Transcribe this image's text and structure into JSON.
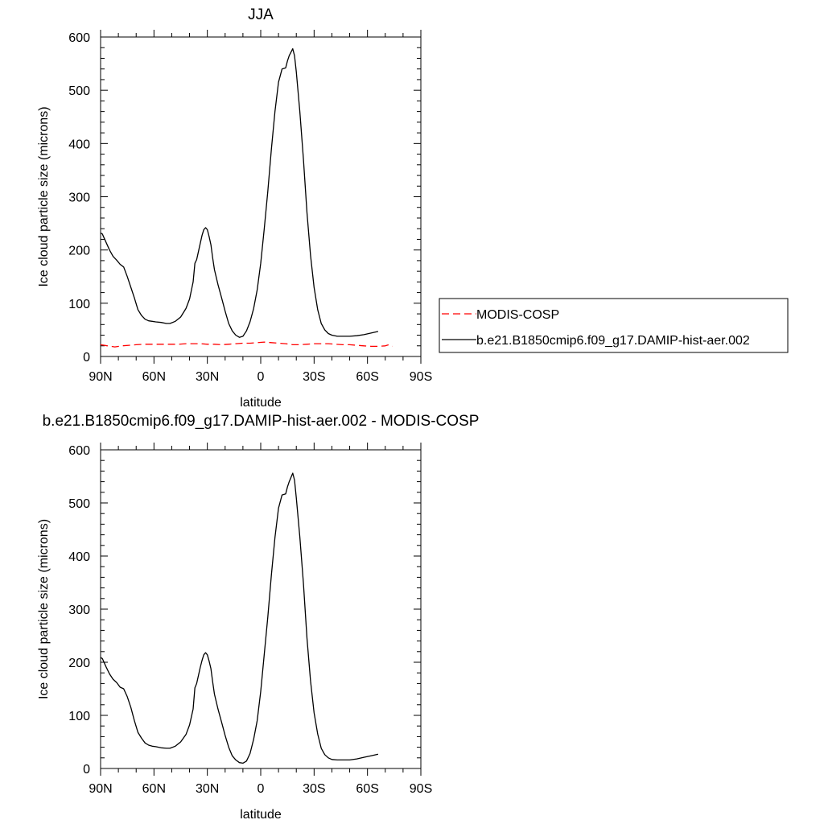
{
  "chart_data": [
    {
      "type": "line",
      "title": "JJA",
      "xlabel": "latitude",
      "ylabel": "Ice cloud particle size (microns)",
      "xlim": [
        90,
        -90
      ],
      "ylim": [
        0,
        600
      ],
      "xticks": [
        {
          "value": 90,
          "label": "90N"
        },
        {
          "value": 60,
          "label": "60N"
        },
        {
          "value": 30,
          "label": "30N"
        },
        {
          "value": 0,
          "label": "0"
        },
        {
          "value": -30,
          "label": "30S"
        },
        {
          "value": -60,
          "label": "60S"
        },
        {
          "value": -90,
          "label": "90S"
        }
      ],
      "yticks": [
        0,
        100,
        200,
        300,
        400,
        500,
        600
      ],
      "legend_position": "right",
      "series": [
        {
          "name": "MODIS-COSP",
          "color": "#ff0000",
          "dash": "dashed",
          "x": [
            90,
            86,
            82,
            78,
            74,
            70,
            66,
            62,
            58,
            54,
            50,
            46,
            42,
            38,
            34,
            30,
            26,
            22,
            18,
            14,
            10,
            6,
            2,
            -2,
            -6,
            -10,
            -14,
            -18,
            -22,
            -26,
            -30,
            -34,
            -38,
            -42,
            -46,
            -50,
            -54,
            -58,
            -62,
            -66,
            -70,
            -72,
            -74
          ],
          "values": [
            22,
            20,
            18,
            20,
            21,
            22,
            23,
            23,
            23,
            23,
            23,
            23,
            24,
            24,
            24,
            23,
            23,
            22,
            23,
            24,
            25,
            25,
            26,
            27,
            26,
            25,
            24,
            22,
            22,
            23,
            24,
            24,
            24,
            23,
            22,
            22,
            21,
            20,
            19,
            19,
            20,
            22,
            19
          ]
        },
        {
          "name": "b.e21.B1850cmip6.f09_g17.DAMIP-hist-aer.002",
          "color": "#000000",
          "dash": "solid",
          "x": [
            90,
            89,
            87,
            85,
            83,
            81,
            79,
            77,
            75,
            73,
            71,
            69,
            67,
            65,
            63,
            61,
            59,
            56,
            53,
            51,
            48,
            45,
            42,
            40,
            38,
            37,
            36,
            34,
            33,
            32,
            31,
            30,
            29,
            28,
            27,
            26,
            24,
            22,
            20,
            18,
            16,
            14,
            12,
            10,
            8,
            6,
            4,
            2,
            0,
            -2,
            -4,
            -6,
            -8,
            -10,
            -12,
            -14,
            -15,
            -16,
            -18,
            -19,
            -20,
            -22,
            -24,
            -26,
            -28,
            -30,
            -32,
            -34,
            -36,
            -38,
            -40,
            -43,
            -46,
            -50,
            -54,
            -58,
            -62,
            -66
          ],
          "values": [
            232,
            230,
            215,
            200,
            188,
            181,
            173,
            168,
            150,
            130,
            110,
            88,
            77,
            70,
            67,
            66,
            65,
            64,
            62,
            62,
            66,
            74,
            90,
            108,
            140,
            175,
            182,
            212,
            227,
            238,
            242,
            238,
            225,
            210,
            185,
            163,
            135,
            110,
            85,
            62,
            48,
            40,
            36,
            38,
            48,
            65,
            90,
            125,
            175,
            240,
            310,
            390,
            460,
            515,
            540,
            542,
            555,
            565,
            578,
            565,
            535,
            460,
            370,
            270,
            190,
            130,
            88,
            62,
            50,
            43,
            40,
            38,
            38,
            38,
            39,
            41,
            44,
            47
          ]
        }
      ]
    },
    {
      "type": "line",
      "title": "b.e21.B1850cmip6.f09_g17.DAMIP-hist-aer.002 - MODIS-COSP",
      "xlabel": "latitude",
      "ylabel": "Ice cloud particle size (microns)",
      "xlim": [
        90,
        -90
      ],
      "ylim": [
        0,
        600
      ],
      "xticks": [
        {
          "value": 90,
          "label": "90N"
        },
        {
          "value": 60,
          "label": "60N"
        },
        {
          "value": 30,
          "label": "30N"
        },
        {
          "value": 0,
          "label": "0"
        },
        {
          "value": -30,
          "label": "30S"
        },
        {
          "value": -60,
          "label": "60S"
        },
        {
          "value": -90,
          "label": "90S"
        }
      ],
      "yticks": [
        0,
        100,
        200,
        300,
        400,
        500,
        600
      ],
      "series": [
        {
          "color": "#000000",
          "dash": "solid",
          "x": [
            90,
            89,
            87,
            85,
            83,
            81,
            79,
            77,
            75,
            73,
            71,
            69,
            67,
            65,
            63,
            61,
            59,
            56,
            53,
            51,
            48,
            45,
            42,
            40,
            38,
            37,
            36,
            34,
            33,
            32,
            31,
            30,
            29,
            28,
            27,
            26,
            24,
            22,
            20,
            18,
            16,
            14,
            12,
            10,
            8,
            6,
            4,
            2,
            0,
            -2,
            -4,
            -6,
            -8,
            -10,
            -12,
            -14,
            -15,
            -16,
            -18,
            -19,
            -20,
            -22,
            -24,
            -26,
            -28,
            -30,
            -32,
            -34,
            -36,
            -38,
            -40,
            -43,
            -46,
            -50,
            -54,
            -58,
            -62,
            -66
          ],
          "values": [
            209,
            207,
            192,
            178,
            168,
            162,
            153,
            150,
            135,
            115,
            90,
            68,
            57,
            48,
            44,
            42,
            41,
            39,
            38,
            38,
            42,
            50,
            64,
            82,
            112,
            152,
            160,
            190,
            203,
            214,
            218,
            214,
            202,
            188,
            163,
            140,
            112,
            87,
            62,
            40,
            24,
            16,
            11,
            10,
            14,
            28,
            55,
            90,
            145,
            215,
            285,
            365,
            435,
            490,
            515,
            517,
            530,
            540,
            556,
            543,
            510,
            436,
            348,
            245,
            165,
            105,
            65,
            38,
            26,
            20,
            17,
            16,
            16,
            16,
            18,
            21,
            24,
            27
          ]
        }
      ]
    }
  ]
}
